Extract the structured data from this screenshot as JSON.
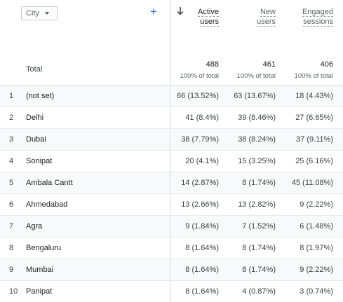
{
  "dimension": {
    "label": "City"
  },
  "columns": [
    {
      "key": "active_users",
      "line1": "Active",
      "line2": "users"
    },
    {
      "key": "new_users",
      "line1": "New",
      "line2": "users"
    },
    {
      "key": "engaged_sessions",
      "line1": "Engaged",
      "line2": "sessions"
    }
  ],
  "totals": {
    "label": "Total",
    "values": [
      "488",
      "461",
      "406"
    ],
    "pcts": [
      "100% of total",
      "100% of total",
      "100% of total"
    ]
  },
  "rows": [
    {
      "idx": "1",
      "name": "(not set)",
      "cells": [
        "66 (13.52%)",
        "63 (13.67%)",
        "18 (4.43%)"
      ]
    },
    {
      "idx": "2",
      "name": "Delhi",
      "cells": [
        "41 (8.4%)",
        "39 (8.46%)",
        "27 (6.65%)"
      ]
    },
    {
      "idx": "3",
      "name": "Dubai",
      "cells": [
        "38 (7.79%)",
        "38 (8.24%)",
        "37 (9.11%)"
      ]
    },
    {
      "idx": "4",
      "name": "Sonipat",
      "cells": [
        "20 (4.1%)",
        "15 (3.25%)",
        "25 (6.16%)"
      ]
    },
    {
      "idx": "5",
      "name": "Ambala Cantt",
      "cells": [
        "14 (2.87%)",
        "8 (1.74%)",
        "45 (11.08%)"
      ]
    },
    {
      "idx": "6",
      "name": "Ahmedabad",
      "cells": [
        "13 (2.66%)",
        "13 (2.82%)",
        "9 (2.22%)"
      ]
    },
    {
      "idx": "7",
      "name": "Agra",
      "cells": [
        "9 (1.84%)",
        "7 (1.52%)",
        "6 (1.48%)"
      ]
    },
    {
      "idx": "8",
      "name": "Bengaluru",
      "cells": [
        "8 (1.64%)",
        "8 (1.74%)",
        "8 (1.97%)"
      ]
    },
    {
      "idx": "9",
      "name": "Mumbai",
      "cells": [
        "8 (1.64%)",
        "8 (1.74%)",
        "9 (2.22%)"
      ]
    },
    {
      "idx": "10",
      "name": "Panipat",
      "cells": [
        "8 (1.64%)",
        "4 (0.87%)",
        "3 (0.74%)"
      ]
    }
  ]
}
